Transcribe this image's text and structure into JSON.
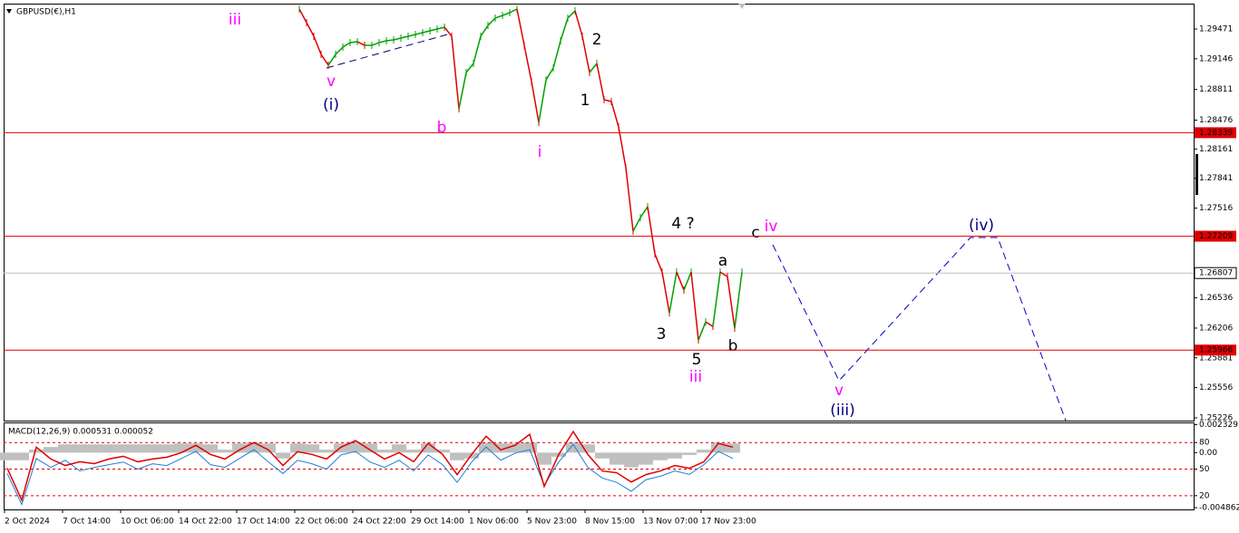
{
  "header": {
    "symbol": "GBPUSD(€),H1"
  },
  "chart_data": {
    "type": "line",
    "ylim": [
      1.25196,
      1.29748
    ],
    "yticks": [
      1.29471,
      1.29146,
      1.28811,
      1.28476,
      1.28161,
      1.27841,
      1.27516,
      1.26536,
      1.26206,
      1.25881,
      1.25556,
      1.25226
    ],
    "x_labels": [
      "2 Oct 2024",
      "7 Oct 14:00",
      "10 Oct 06:00",
      "14 Oct 22:00",
      "17 Oct 14:00",
      "22 Oct 06:00",
      "24 Oct 22:00",
      "29 Oct 14:00",
      "1 Nov 06:00",
      "5 Nov 23:00",
      "8 Nov 15:00",
      "13 Nov 07:00",
      "17 Nov 23:00"
    ],
    "up_color": "#00a000",
    "down_color": "#e00000",
    "values": [
      1.29689,
      1.2954,
      1.29392,
      1.29194,
      1.29075,
      1.29194,
      1.29273,
      1.29322,
      1.29332,
      1.29293,
      1.29293,
      1.29322,
      1.29342,
      1.29352,
      1.29372,
      1.29392,
      1.29411,
      1.29431,
      1.29451,
      1.29471,
      1.29491,
      1.29392,
      1.286,
      1.28996,
      1.29095,
      1.29392,
      1.2951,
      1.2959,
      1.29619,
      1.29649,
      1.29689,
      1.29293,
      1.28897,
      1.28451,
      1.28916,
      1.29045,
      1.29342,
      1.2959,
      1.29669,
      1.29392,
      1.28996,
      1.29095,
      1.28699,
      1.28679,
      1.28402,
      1.27956,
      1.27263,
      1.27412,
      1.2753,
      1.27016,
      1.26818,
      1.26372,
      1.26818,
      1.2662,
      1.26818,
      1.26075,
      1.26273,
      1.26224,
      1.26818,
      1.26768,
      1.26204,
      1.26818
    ],
    "price_lines": {
      "color": "#e00000",
      "values": [
        1.28339,
        1.27209,
        1.25966
      ]
    },
    "current_price": {
      "color": "#c0c0c0",
      "value": 1.26807
    },
    "annotations": [
      {
        "text": "iii",
        "color": "#ff00ff"
      },
      {
        "text": "v",
        "color": "#ff00ff"
      },
      {
        "text": "(i)",
        "color": "#000080"
      },
      {
        "text": "b",
        "color": "#ff00ff"
      },
      {
        "text": "i",
        "color": "#ff00ff"
      },
      {
        "text": "2",
        "color": "#000000"
      },
      {
        "text": "1",
        "color": "#000000"
      },
      {
        "text": "4 ?",
        "color": "#000000"
      },
      {
        "text": "c",
        "color": "#000000"
      },
      {
        "text": "iv",
        "color": "#ff00ff"
      },
      {
        "text": "(iv)",
        "color": "#000080"
      },
      {
        "text": "a",
        "color": "#000000"
      },
      {
        "text": "3",
        "color": "#000000"
      },
      {
        "text": "5",
        "color": "#000000"
      },
      {
        "text": "iii",
        "color": "#ff00ff"
      },
      {
        "text": "b",
        "color": "#000000"
      },
      {
        "text": "v",
        "color": "#ff00ff"
      },
      {
        "text": "(iii)",
        "color": "#000080"
      }
    ],
    "macd": {
      "label": "MACD(12,26,9) 0.000531 0.000052",
      "ylim": [
        4.5,
        101.7
      ],
      "yticks": [
        {
          "value": 100.2,
          "label": "0.002329"
        },
        80,
        {
          "value": 68.6,
          "label": "0.00"
        },
        50,
        20,
        {
          "value": 6.5,
          "label": "-0.004862"
        }
      ],
      "level_color": "#e00000",
      "histogram": {
        "color": "#c0c0c0",
        "values": [
          60,
          60,
          72,
          75,
          78,
          78,
          78,
          78,
          78,
          78,
          78,
          78,
          79,
          79,
          78,
          72,
          79,
          80,
          79,
          62,
          79,
          78,
          72,
          79,
          80,
          79,
          72,
          78,
          72,
          79,
          72,
          60,
          62,
          80,
          79,
          79,
          80,
          55,
          64,
          80,
          78,
          62,
          55,
          52,
          55,
          60,
          62,
          66,
          72,
          80,
          79
        ]
      },
      "signal": {
        "color": "#e00000",
        "values": [
          51.0,
          14.9,
          74.8,
          61.4,
          54.1,
          58.3,
          56.2,
          61.4,
          64.5,
          58.3,
          61.4,
          63.5,
          68.6,
          76.9,
          66.6,
          61.4,
          71.7,
          80.0,
          71.7,
          54.1,
          69.7,
          66.6,
          61.4,
          74.8,
          82.1,
          71.7,
          61.4,
          68.6,
          58.3,
          79.0,
          66.6,
          43.8,
          66.6,
          87.2,
          71.7,
          76.9,
          89.3,
          30.4,
          66.6,
          92.4,
          66.6,
          47.9,
          45.9,
          35.5,
          43.8,
          47.9,
          54.1,
          51.0,
          58.3,
          79.0,
          74.8
        ]
      },
      "main": {
        "color": "#1e7fd8",
        "values": [
          45,
          10,
          62,
          52,
          60,
          48,
          52,
          55,
          58,
          50,
          56,
          54,
          62,
          70,
          55,
          52,
          62,
          72,
          58,
          45,
          60,
          56,
          50,
          66,
          70,
          58,
          52,
          60,
          48,
          66,
          55,
          35,
          58,
          75,
          60,
          68,
          72,
          32,
          58,
          78,
          52,
          40,
          35,
          25,
          38,
          42,
          48,
          44,
          55,
          70,
          62
        ]
      }
    }
  }
}
